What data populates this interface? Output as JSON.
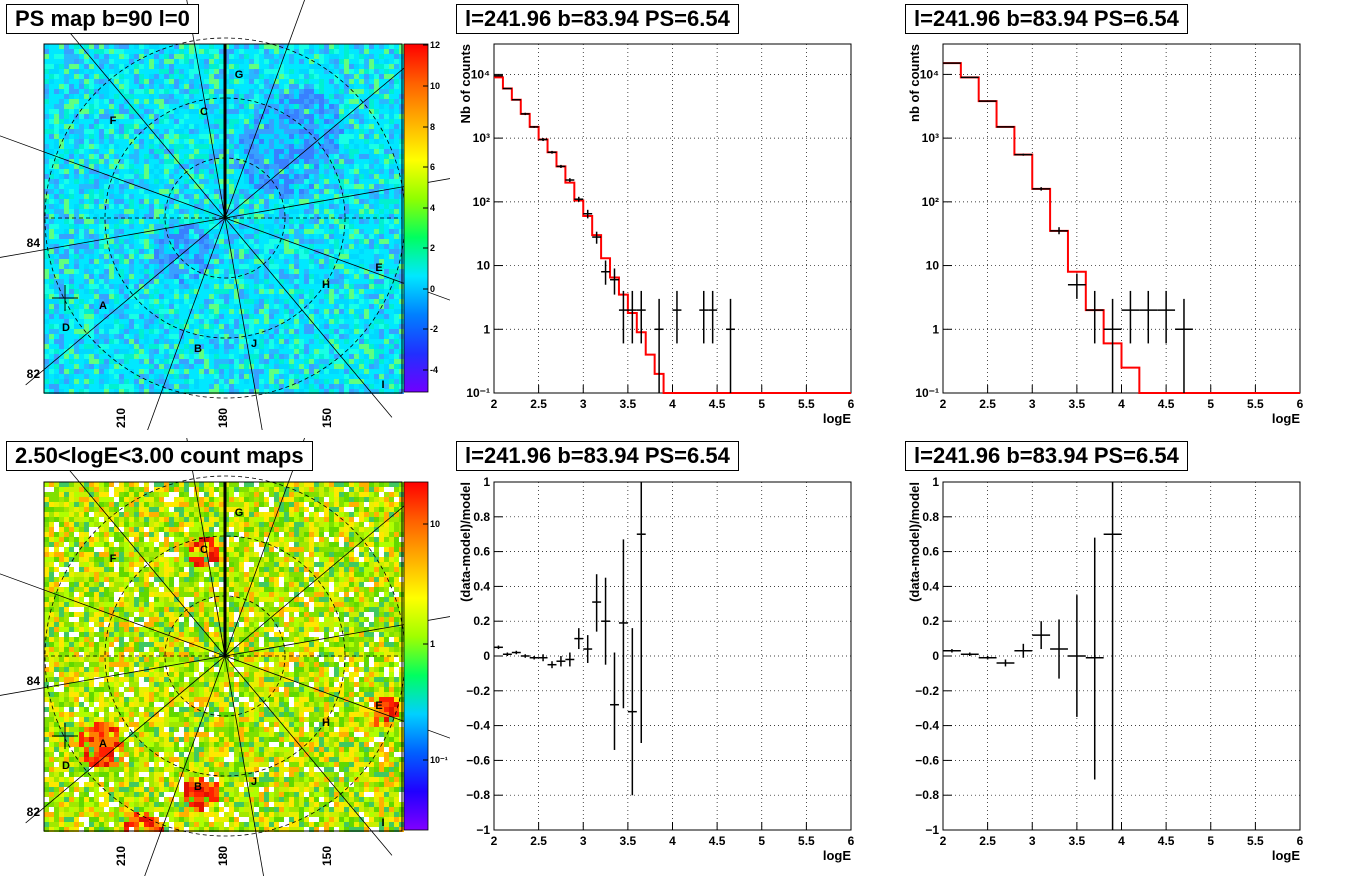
{
  "titles": {
    "map_top": "PS map b=90 l=0",
    "map_bottom": "2.50<logE<3.00 count maps",
    "spec_a": "l=241.96 b=83.94 PS=6.54",
    "spec_b": "l=241.96 b=83.94 PS=6.54",
    "res_a": "l=241.96 b=83.94 PS=6.54",
    "res_b": "l=241.96 b=83.94 PS=6.54"
  },
  "map_axes": {
    "x_ticks": [
      "210",
      "180",
      "150"
    ],
    "y_ticks": [
      "84",
      "82"
    ]
  },
  "region_labels": [
    "A",
    "B",
    "C",
    "D",
    "E",
    "F",
    "G",
    "H",
    "I",
    "J"
  ],
  "colorbars": {
    "top_ticks": [
      "12",
      "10",
      "8",
      "6",
      "4",
      "2",
      "0",
      "-2",
      "-4"
    ],
    "bottom_ticks": [
      "10",
      "1",
      "10⁻¹"
    ]
  },
  "colors": {
    "model": "#ff0000",
    "data": "#000000"
  },
  "chart_data": [
    {
      "type": "line",
      "id": "spectrum_a",
      "title": "l=241.96 b=83.94 PS=6.54",
      "xlabel": "logE",
      "ylabel": "Nb of counts",
      "xlim": [
        2,
        6
      ],
      "ylim": [
        0.1,
        30000
      ],
      "yscale": "log",
      "grid": true,
      "x_ticks": [
        "2",
        "2.5",
        "3",
        "3.5",
        "4",
        "4.5",
        "5",
        "5.5",
        "6"
      ],
      "y_ticks": [
        "10⁻¹",
        "1",
        "10",
        "10²",
        "10³",
        "10⁴"
      ],
      "model_steps": {
        "edges": [
          2.0,
          2.1,
          2.2,
          2.3,
          2.4,
          2.5,
          2.6,
          2.7,
          2.8,
          2.9,
          3.0,
          3.1,
          3.2,
          3.3,
          3.4,
          3.5,
          3.6,
          3.7,
          3.8,
          3.9,
          4.0,
          4.1,
          6.0
        ],
        "values": [
          9000,
          6000,
          4000,
          2400,
          1500,
          950,
          600,
          360,
          200,
          105,
          60,
          30,
          13,
          6.5,
          3.5,
          1.8,
          0.9,
          0.4,
          0.2,
          0.1,
          0.1,
          0.1
        ]
      },
      "data_points": {
        "x": [
          2.05,
          2.15,
          2.25,
          2.35,
          2.45,
          2.55,
          2.65,
          2.75,
          2.85,
          2.95,
          3.05,
          3.15,
          3.25,
          3.35,
          3.45,
          3.55,
          3.65,
          3.85,
          4.05,
          4.35,
          4.45,
          4.65
        ],
        "y": [
          9500,
          6000,
          4000,
          2400,
          1500,
          950,
          600,
          360,
          220,
          110,
          65,
          28,
          8,
          6,
          2,
          2,
          2,
          1,
          2,
          2,
          2,
          1
        ],
        "ylo": [
          9300,
          5900,
          3900,
          2300,
          1450,
          900,
          570,
          340,
          205,
          100,
          55,
          22,
          5,
          3.5,
          0.6,
          0.6,
          0.6,
          0.1,
          0.6,
          0.6,
          0.6,
          0.1
        ],
        "yhi": [
          9700,
          6100,
          4100,
          2500,
          1550,
          1000,
          630,
          380,
          235,
          120,
          75,
          34,
          12,
          9,
          4,
          4,
          4,
          3,
          4,
          4,
          4,
          3
        ]
      }
    },
    {
      "type": "line",
      "id": "spectrum_b",
      "title": "l=241.96 b=83.94 PS=6.54",
      "xlabel": "logE",
      "ylabel": "nb of counts",
      "xlim": [
        2,
        6
      ],
      "ylim": [
        0.1,
        30000
      ],
      "yscale": "log",
      "grid": true,
      "x_ticks": [
        "2",
        "2.5",
        "3",
        "3.5",
        "4",
        "4.5",
        "5",
        "5.5",
        "6"
      ],
      "y_ticks": [
        "10⁻¹",
        "1",
        "10",
        "10²",
        "10³",
        "10⁴"
      ],
      "model_steps": {
        "edges": [
          2.0,
          2.2,
          2.4,
          2.6,
          2.8,
          3.0,
          3.2,
          3.4,
          3.6,
          3.8,
          4.0,
          4.2,
          6.0
        ],
        "values": [
          15000,
          9000,
          3800,
          1500,
          550,
          160,
          35,
          8,
          2,
          0.6,
          0.25,
          0.1
        ]
      },
      "data_points": {
        "x": [
          2.1,
          2.3,
          2.5,
          2.7,
          2.9,
          3.1,
          3.3,
          3.5,
          3.7,
          3.9,
          4.1,
          4.3,
          4.5,
          4.7
        ],
        "y": [
          15000,
          9000,
          3800,
          1500,
          550,
          160,
          35,
          5,
          2,
          1,
          2,
          2,
          2,
          1
        ],
        "ylo": [
          14800,
          8900,
          3750,
          1470,
          530,
          150,
          31,
          3,
          0.6,
          0.1,
          0.6,
          0.6,
          0.6,
          0.1
        ],
        "yhi": [
          15200,
          9100,
          3850,
          1530,
          570,
          170,
          40,
          7.5,
          4,
          3,
          4,
          4,
          4,
          3
        ]
      }
    },
    {
      "type": "scatter",
      "id": "residual_a",
      "title": "l=241.96 b=83.94 PS=6.54",
      "xlabel": "logE",
      "ylabel": "(data-model)/model",
      "xlim": [
        2,
        6
      ],
      "ylim": [
        -1,
        1
      ],
      "grid": true,
      "x_ticks": [
        "2",
        "2.5",
        "3",
        "3.5",
        "4",
        "4.5",
        "5",
        "5.5",
        "6"
      ],
      "y_ticks": [
        "1",
        "0.8",
        "0.6",
        "0.4",
        "0.2",
        "0",
        "−0.2",
        "−0.4",
        "−0.6",
        "−0.8",
        "−1"
      ],
      "x": [
        2.05,
        2.15,
        2.25,
        2.35,
        2.45,
        2.55,
        2.65,
        2.75,
        2.85,
        2.95,
        3.05,
        3.15,
        3.25,
        3.35,
        3.45,
        3.55,
        3.65
      ],
      "y": [
        0.05,
        0.01,
        0.02,
        0.0,
        -0.01,
        -0.01,
        -0.05,
        -0.03,
        -0.02,
        0.1,
        0.04,
        0.31,
        0.2,
        -0.28,
        0.19,
        -0.32,
        0.7
      ],
      "ylo": [
        0.04,
        0.0,
        0.01,
        -0.01,
        -0.02,
        -0.03,
        -0.07,
        -0.06,
        -0.06,
        0.04,
        -0.04,
        0.14,
        -0.05,
        -0.54,
        -0.3,
        -0.8,
        -0.5
      ],
      "yhi": [
        0.06,
        0.02,
        0.03,
        0.01,
        0.0,
        0.01,
        -0.03,
        0.0,
        0.02,
        0.16,
        0.12,
        0.47,
        0.45,
        0.02,
        0.67,
        0.16,
        1.0
      ]
    },
    {
      "type": "scatter",
      "id": "residual_b",
      "title": "l=241.96 b=83.94 PS=6.54",
      "xlabel": "logE",
      "ylabel": "(data-model)/model",
      "xlim": [
        2,
        6
      ],
      "ylim": [
        -1,
        1
      ],
      "grid": true,
      "x_ticks": [
        "2",
        "2.5",
        "3",
        "3.5",
        "4",
        "4.5",
        "5",
        "5.5",
        "6"
      ],
      "y_ticks": [
        "1",
        "0.8",
        "0.6",
        "0.4",
        "0.2",
        "0",
        "−0.2",
        "−0.4",
        "−0.6",
        "−0.8",
        "−1"
      ],
      "x": [
        2.1,
        2.3,
        2.5,
        2.7,
        2.9,
        3.1,
        3.3,
        3.5,
        3.7,
        3.9
      ],
      "y": [
        0.03,
        0.01,
        -0.01,
        -0.04,
        0.03,
        0.12,
        0.04,
        0.0,
        -0.01,
        0.7
      ],
      "ylo": [
        0.02,
        0.0,
        -0.02,
        -0.06,
        -0.01,
        0.04,
        -0.13,
        -0.35,
        -0.71,
        -1.0
      ],
      "yhi": [
        0.04,
        0.02,
        0.0,
        -0.02,
        0.07,
        0.2,
        0.21,
        0.35,
        0.68,
        1.0
      ]
    }
  ]
}
